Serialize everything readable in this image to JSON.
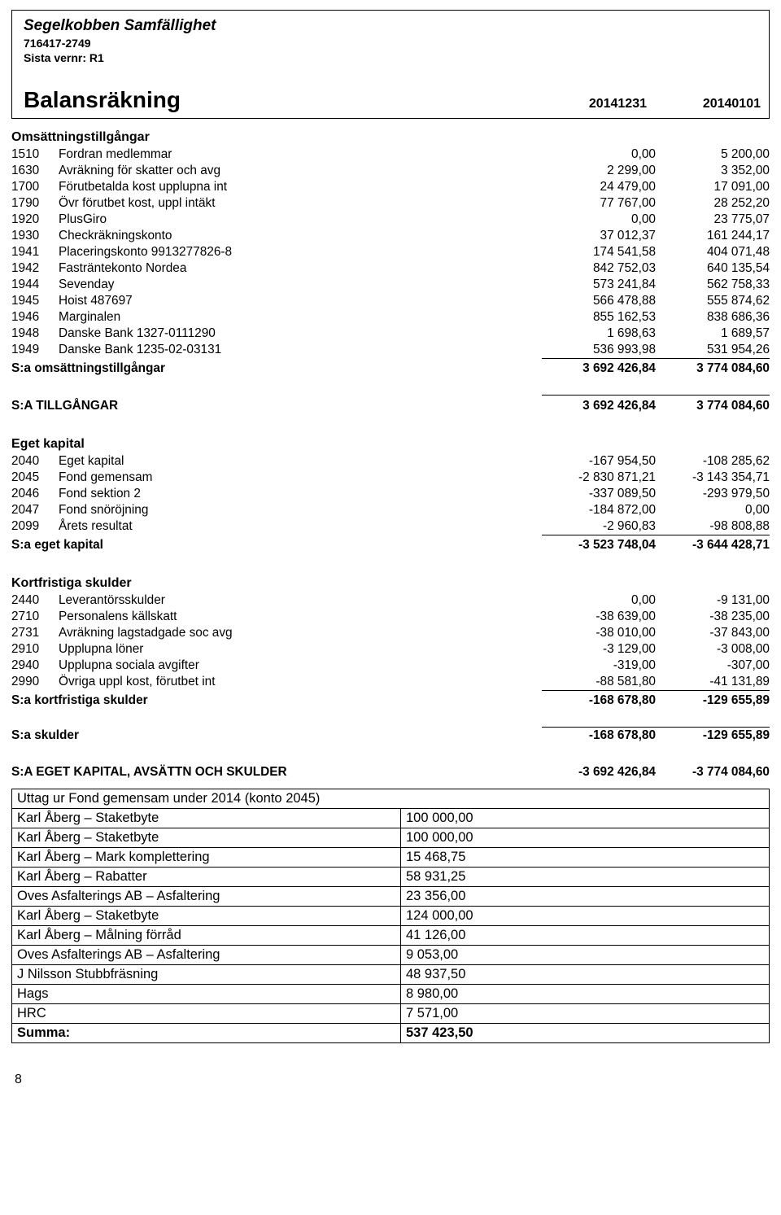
{
  "header": {
    "org_name": "Segelkobben Samfällighet",
    "org_num": "716417-2749",
    "sista": "Sista vernr: R1",
    "title": "Balansräkning",
    "col1": "20141231",
    "col2": "20140101"
  },
  "sections": {
    "oms": {
      "head": "Omsättningstillgångar",
      "rows": [
        {
          "acct": "1510",
          "label": "Fordran medlemmar",
          "v1": "0,00",
          "v2": "5 200,00"
        },
        {
          "acct": "1630",
          "label": "Avräkning för skatter och avg",
          "v1": "2 299,00",
          "v2": "3 352,00"
        },
        {
          "acct": "1700",
          "label": "Förutbetalda kost upplupna int",
          "v1": "24 479,00",
          "v2": "17 091,00"
        },
        {
          "acct": "1790",
          "label": "Övr förutbet kost, uppl intäkt",
          "v1": "77 767,00",
          "v2": "28 252,20"
        },
        {
          "acct": "1920",
          "label": "PlusGiro",
          "v1": "0,00",
          "v2": "23 775,07"
        },
        {
          "acct": "1930",
          "label": "Checkräkningskonto",
          "v1": "37 012,37",
          "v2": "161 244,17"
        },
        {
          "acct": "1941",
          "label": "Placeringskonto 9913277826-8",
          "v1": "174 541,58",
          "v2": "404 071,48"
        },
        {
          "acct": "1942",
          "label": "Fasträntekonto Nordea",
          "v1": "842 752,03",
          "v2": "640 135,54"
        },
        {
          "acct": "1944",
          "label": "Sevenday",
          "v1": "573 241,84",
          "v2": "562 758,33"
        },
        {
          "acct": "1945",
          "label": "Hoist 487697",
          "v1": "566 478,88",
          "v2": "555 874,62"
        },
        {
          "acct": "1946",
          "label": "Marginalen",
          "v1": "855 162,53",
          "v2": "838 686,36"
        },
        {
          "acct": "1948",
          "label": "Danske Bank 1327-0111290",
          "v1": "1 698,63",
          "v2": "1 689,57"
        },
        {
          "acct": "1949",
          "label": "Danske Bank 1235-02-03131",
          "v1": "536 993,98",
          "v2": "531 954,26"
        }
      ],
      "sum": {
        "label": "S:a omsättningstillgångar",
        "v1": "3 692 426,84",
        "v2": "3 774 084,60"
      }
    },
    "tillg": {
      "label": "S:A TILLGÅNGAR",
      "v1": "3 692 426,84",
      "v2": "3 774 084,60"
    },
    "eget": {
      "head": "Eget kapital",
      "rows": [
        {
          "acct": "2040",
          "label": "Eget kapital",
          "v1": "-167 954,50",
          "v2": "-108 285,62"
        },
        {
          "acct": "2045",
          "label": "Fond gemensam",
          "v1": "-2 830 871,21",
          "v2": "-3 143 354,71"
        },
        {
          "acct": "2046",
          "label": "Fond sektion 2",
          "v1": "-337 089,50",
          "v2": "-293 979,50"
        },
        {
          "acct": "2047",
          "label": "Fond snöröjning",
          "v1": "-184 872,00",
          "v2": "0,00"
        },
        {
          "acct": "2099",
          "label": "Årets resultat",
          "v1": "-2 960,83",
          "v2": "-98 808,88"
        }
      ],
      "sum": {
        "label": "S:a eget kapital",
        "v1": "-3 523 748,04",
        "v2": "-3 644 428,71"
      }
    },
    "kort": {
      "head": "Kortfristiga skulder",
      "rows": [
        {
          "acct": "2440",
          "label": "Leverantörsskulder",
          "v1": "0,00",
          "v2": "-9 131,00"
        },
        {
          "acct": "2710",
          "label": "Personalens källskatt",
          "v1": "-38 639,00",
          "v2": "-38 235,00"
        },
        {
          "acct": "2731",
          "label": "Avräkning lagstadgade soc avg",
          "v1": "-38 010,00",
          "v2": "-37 843,00"
        },
        {
          "acct": "2910",
          "label": "Upplupna löner",
          "v1": "-3 129,00",
          "v2": "-3 008,00"
        },
        {
          "acct": "2940",
          "label": "Upplupna sociala avgifter",
          "v1": "-319,00",
          "v2": "-307,00"
        },
        {
          "acct": "2990",
          "label": "Övriga uppl kost, förutbet int",
          "v1": "-88 581,80",
          "v2": "-41 131,89"
        }
      ],
      "sum": {
        "label": "S:a kortfristiga skulder",
        "v1": "-168 678,80",
        "v2": "-129 655,89"
      }
    },
    "skulder_sum": {
      "label": "S:a skulder",
      "v1": "-168 678,80",
      "v2": "-129 655,89"
    },
    "grand": {
      "label": "S:A EGET KAPITAL, AVSÄTTN OCH SKULDER",
      "v1": "-3 692 426,84",
      "v2": "-3 774 084,60"
    }
  },
  "uttag": {
    "title": "Uttag ur Fond gemensam under 2014 (konto 2045)",
    "rows": [
      {
        "label": "Karl Åberg – Staketbyte",
        "amount": "100 000,00"
      },
      {
        "label": "Karl Åberg – Staketbyte",
        "amount": "100 000,00"
      },
      {
        "label": "Karl Åberg – Mark komplettering",
        "amount": "15 468,75"
      },
      {
        "label": "Karl Åberg – Rabatter",
        "amount": "58 931,25"
      },
      {
        "label": "Oves Asfalterings AB – Asfaltering",
        "amount": "23 356,00"
      },
      {
        "label": "Karl Åberg – Staketbyte",
        "amount": "124 000,00"
      },
      {
        "label": "Karl Åberg – Målning förråd",
        "amount": "41 126,00"
      },
      {
        "label": "Oves Asfalterings AB – Asfaltering",
        "amount": "9 053,00"
      },
      {
        "label": "J Nilsson Stubbfräsning",
        "amount": "48 937,50"
      },
      {
        "label": "Hags",
        "amount": "8 980,00"
      },
      {
        "label": "HRC",
        "amount": "7 571,00"
      }
    ],
    "sum": {
      "label": "Summa:",
      "amount": "537 423,50"
    }
  },
  "page_number": "8"
}
